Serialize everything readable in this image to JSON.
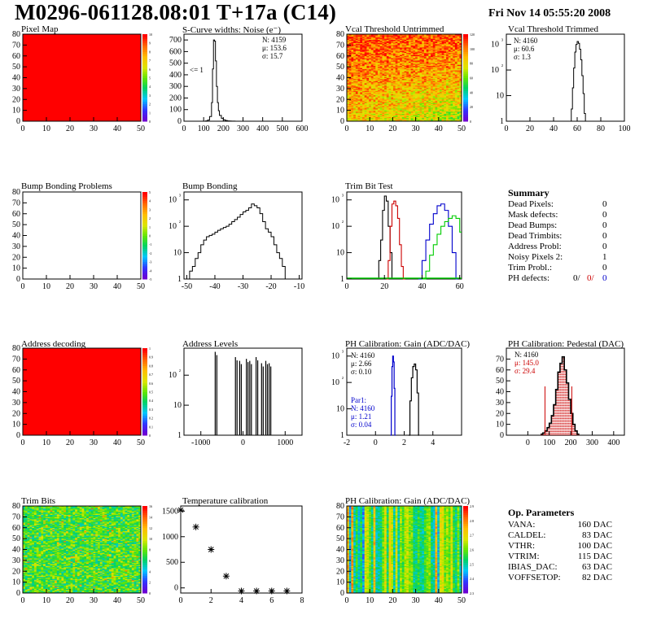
{
  "header": {
    "title": "M0296-061128.08:01 T+17a (C14)",
    "date": "Fri Nov 14 05:55:20 2008"
  },
  "panels": {
    "pixel_map": {
      "title": "Pixel Map",
      "xticks": [
        "0",
        "10",
        "20",
        "30",
        "40",
        "50"
      ],
      "yticks": [
        "0",
        "10",
        "20",
        "30",
        "40",
        "50",
        "60",
        "70",
        "80"
      ],
      "zticks": [
        "0",
        "1",
        "2",
        "3",
        "4",
        "5",
        "6",
        "7",
        "8",
        "9",
        "10"
      ]
    },
    "scurve": {
      "title": "S-Curve widths: Noise (e⁻)",
      "xticks": [
        "0",
        "100",
        "200",
        "300",
        "400",
        "500",
        "600"
      ],
      "yticks": [
        "0",
        "100",
        "200",
        "300",
        "400",
        "500",
        "600",
        "700"
      ],
      "stats": [
        "N: 4159",
        "μ: 153.6",
        "σ: 15.7"
      ],
      "annotation": "<= 1"
    },
    "vcal_untrimmed": {
      "title": "Vcal Threshold Untrimmed",
      "xticks": [
        "0",
        "10",
        "20",
        "30",
        "40",
        "50"
      ],
      "yticks": [
        "0",
        "10",
        "20",
        "30",
        "40",
        "50",
        "60",
        "70",
        "80"
      ],
      "zticks": [
        "0",
        "20",
        "40",
        "60",
        "80",
        "100",
        "120"
      ]
    },
    "vcal_trimmed": {
      "title": "Vcal Threshold Trimmed",
      "xticks": [
        "0",
        "20",
        "40",
        "60",
        "80",
        "100"
      ],
      "yticks": [
        "1",
        "10",
        "10²",
        "10³"
      ],
      "stats": [
        "N: 4160",
        "μ: 60.6",
        "σ:  1.3"
      ]
    },
    "bump_problems": {
      "title": "Bump Bonding Problems",
      "xticks": [
        "0",
        "10",
        "20",
        "30",
        "40",
        "50"
      ],
      "yticks": [
        "0",
        "10",
        "20",
        "30",
        "40",
        "50",
        "60",
        "70",
        "80"
      ],
      "zticks": [
        "-5",
        "-4",
        "-3",
        "-2",
        "-1",
        "0",
        "1",
        "2",
        "3",
        "4",
        "5"
      ]
    },
    "bump_bonding": {
      "title": "Bump Bonding",
      "xticks": [
        "-50",
        "-40",
        "-30",
        "-20",
        "-10"
      ],
      "yticks": [
        "1",
        "10",
        "10²",
        "10³"
      ]
    },
    "trim_bit": {
      "title": "Trim Bit Test",
      "xticks": [
        "0",
        "20",
        "40",
        "60"
      ],
      "yticks": [
        "1",
        "10",
        "10²",
        "10³"
      ]
    },
    "address_decoding": {
      "title": "Address decoding",
      "xticks": [
        "0",
        "10",
        "20",
        "30",
        "40",
        "50"
      ],
      "yticks": [
        "0",
        "10",
        "20",
        "30",
        "40",
        "50",
        "60",
        "70",
        "80"
      ],
      "zticks": [
        "0",
        "0.1",
        "0.2",
        "0.3",
        "0.4",
        "0.5",
        "0.6",
        "0.7",
        "0.8",
        "0.9",
        "1"
      ]
    },
    "address_levels": {
      "title": "Address Levels",
      "xticks": [
        "-1000",
        "0",
        "1000"
      ],
      "yticks": [
        "1",
        "10",
        "10²"
      ]
    },
    "ph_gain": {
      "title": "PH Calibration: Gain (ADC/DAC)",
      "xticks": [
        "-2",
        "0",
        "2",
        "4"
      ],
      "yticks": [
        "1",
        "10",
        "10²",
        "10³"
      ],
      "stats": [
        "N: 4160",
        "μ: 2.66",
        "σ: 0.10"
      ],
      "par1": [
        "Par1:",
        "N: 4160",
        "μ: 1.21",
        "σ: 0.04"
      ]
    },
    "ph_pedestal": {
      "title": "PH Calibration: Pedestal (DAC)",
      "xticks": [
        "0",
        "100",
        "200",
        "300",
        "400"
      ],
      "yticks": [
        "0",
        "10",
        "20",
        "30",
        "40",
        "50",
        "60",
        "70"
      ],
      "stats": [
        "N: 4160",
        "μ: 145.0",
        "σ: 29.4"
      ]
    },
    "trim_bits": {
      "title": "Trim Bits",
      "xticks": [
        "0",
        "10",
        "20",
        "30",
        "40",
        "50"
      ],
      "yticks": [
        "0",
        "10",
        "20",
        "30",
        "40",
        "50",
        "60",
        "70",
        "80"
      ],
      "zticks": [
        "0",
        "2",
        "4",
        "6",
        "8",
        "10",
        "12",
        "14",
        "16"
      ]
    },
    "temperature": {
      "title": "Temperature calibration",
      "xticks": [
        "0",
        "2",
        "4",
        "6",
        "8"
      ],
      "yticks": [
        "0",
        "500",
        "1000",
        "1500"
      ]
    },
    "ph_gain_map": {
      "title": "PH Calibration: Gain (ADC/DAC)",
      "xticks": [
        "0",
        "10",
        "20",
        "30",
        "40",
        "50"
      ],
      "yticks": [
        "0",
        "10",
        "20",
        "30",
        "40",
        "50",
        "60",
        "70",
        "80"
      ],
      "zticks": [
        "2.3",
        "2.4",
        "2.5",
        "2.6",
        "2.7",
        "2.8",
        "2.9"
      ]
    }
  },
  "summary": {
    "title": "Summary",
    "rows": [
      {
        "label": "Dead Pixels:",
        "value": "0"
      },
      {
        "label": "Mask defects:",
        "value": "0"
      },
      {
        "label": "Dead Bumps:",
        "value": "0"
      },
      {
        "label": "Dead Trimbits:",
        "value": "0"
      },
      {
        "label": "Address Probl:",
        "value": "0"
      },
      {
        "label": "Noisy Pixels 2:",
        "value": "1"
      },
      {
        "label": "Trim Probl.:",
        "value": "0"
      }
    ],
    "ph_defects": {
      "label": "PH defects:",
      "values": [
        "0/",
        "0/",
        "0"
      ],
      "colors": [
        "#000000",
        "#cc0000",
        "#0000cc"
      ]
    }
  },
  "op_params": {
    "title": "Op. Parameters",
    "rows": [
      {
        "label": "VANA:",
        "value": "160 DAC"
      },
      {
        "label": "CALDEL:",
        "value": "83 DAC"
      },
      {
        "label": "VTHR:",
        "value": "100 DAC"
      },
      {
        "label": "VTRIM:",
        "value": "115 DAC"
      },
      {
        "label": "IBIAS_DAC:",
        "value": "63 DAC"
      },
      {
        "label": "VOFFSETOP:",
        "value": "82 DAC"
      }
    ]
  },
  "chart_data": [
    {
      "type": "heatmap",
      "title": "Pixel Map",
      "x_range": [
        0,
        52
      ],
      "y_range": [
        0,
        80
      ],
      "uniform_value": 10,
      "z_range": [
        0,
        10
      ]
    },
    {
      "type": "bar",
      "title": "S-Curve widths: Noise (e⁻)",
      "x_range": [
        0,
        600
      ],
      "y_range": [
        0,
        750
      ],
      "x": [
        100,
        110,
        120,
        130,
        140,
        145,
        150,
        155,
        160,
        165,
        170,
        175,
        180,
        190,
        200,
        210,
        220,
        230,
        240,
        250,
        260
      ],
      "values": [
        0,
        3,
        10,
        40,
        160,
        450,
        700,
        690,
        520,
        300,
        160,
        90,
        50,
        25,
        12,
        6,
        3,
        2,
        1,
        1,
        0
      ],
      "stats": {
        "N": 4159,
        "mean": 153.6,
        "sigma": 15.7
      }
    },
    {
      "type": "heatmap",
      "title": "Vcal Threshold Untrimmed",
      "x_range": [
        0,
        52
      ],
      "y_range": [
        0,
        80
      ],
      "z_range": [
        0,
        130
      ],
      "typical_value": 100
    },
    {
      "type": "bar",
      "title": "Vcal Threshold Trimmed",
      "log_y": true,
      "x_range": [
        0,
        100
      ],
      "x": [
        54,
        55,
        56,
        57,
        58,
        59,
        60,
        61,
        62,
        63,
        64,
        65,
        66,
        67
      ],
      "values": [
        1,
        3,
        20,
        120,
        500,
        1000,
        1300,
        1100,
        650,
        250,
        60,
        12,
        2,
        1
      ],
      "stats": {
        "N": 4160,
        "mean": 60.6,
        "sigma": 1.3
      }
    },
    {
      "type": "heatmap",
      "title": "Bump Bonding Problems",
      "x_range": [
        0,
        52
      ],
      "y_range": [
        0,
        80
      ],
      "z_range": [
        -5,
        5
      ],
      "uniform_value": 0
    },
    {
      "type": "bar",
      "title": "Bump Bonding",
      "log_y": true,
      "x_range": [
        -50,
        -10
      ],
      "x": [
        -50,
        -49,
        -48,
        -47,
        -46,
        -45,
        -44,
        -43,
        -42,
        -41,
        -40,
        -39,
        -38,
        -37,
        -36,
        -35,
        -34,
        -33,
        -32,
        -31,
        -30,
        -29,
        -28,
        -27,
        -26,
        -25,
        -24,
        -23,
        -22,
        -21,
        -20,
        -19,
        -18,
        -17,
        -16,
        -15,
        -14
      ],
      "values": [
        1,
        2,
        3,
        6,
        10,
        20,
        30,
        40,
        45,
        50,
        60,
        70,
        80,
        90,
        100,
        120,
        150,
        180,
        220,
        280,
        350,
        400,
        500,
        700,
        600,
        500,
        300,
        150,
        80,
        60,
        40,
        20,
        10,
        6,
        3,
        1,
        0
      ]
    },
    {
      "type": "bar",
      "title": "Trim Bit Test",
      "log_y": true,
      "x_range": [
        0,
        60
      ],
      "series": [
        {
          "name": "",
          "color": "#000000",
          "x": [
            16,
            17,
            18,
            19,
            20,
            21,
            22,
            23,
            24
          ],
          "values": [
            1,
            5,
            30,
            400,
            1400,
            900,
            100,
            10,
            1
          ]
        },
        {
          "name": "",
          "color": "#cc0000",
          "x": [
            21,
            22,
            23,
            24,
            25,
            26,
            27,
            28,
            29,
            30
          ],
          "values": [
            1,
            5,
            100,
            700,
            900,
            600,
            200,
            20,
            3,
            1
          ]
        },
        {
          "name": "",
          "color": "#0000cc",
          "x": [
            38,
            40,
            42,
            44,
            46,
            48,
            50,
            52,
            54,
            56,
            58
          ],
          "values": [
            1,
            5,
            30,
            120,
            300,
            600,
            700,
            400,
            100,
            10,
            1
          ]
        },
        {
          "name": "",
          "color": "#00cc00",
          "x": [
            40,
            42,
            44,
            46,
            48,
            50,
            52,
            54,
            56,
            58,
            60
          ],
          "values": [
            1,
            2,
            8,
            20,
            50,
            100,
            150,
            200,
            250,
            200,
            60
          ]
        }
      ]
    },
    {
      "type": "heatmap",
      "title": "Address decoding",
      "x_range": [
        0,
        52
      ],
      "y_range": [
        0,
        80
      ],
      "uniform_value": 1,
      "z_range": [
        0,
        1
      ]
    },
    {
      "type": "bar",
      "title": "Address Levels",
      "log_y": true,
      "x_range": [
        -1400,
        1400
      ],
      "x": [
        -640,
        -160,
        -60,
        100,
        180,
        330,
        460,
        560,
        640
      ],
      "values": [
        600,
        400,
        300,
        350,
        300,
        400,
        250,
        300,
        250
      ]
    },
    {
      "type": "bar",
      "title": "PH Calibration: Gain (ADC/DAC)",
      "log_y": true,
      "x_range": [
        -2,
        6
      ],
      "series": [
        {
          "name": "",
          "color": "#000000",
          "x": [
            2.3,
            2.4,
            2.5,
            2.6,
            2.7,
            2.8,
            2.9,
            3.0
          ],
          "values": [
            1,
            20,
            150,
            400,
            500,
            300,
            40,
            1
          ]
        },
        {
          "name": "Par1",
          "color": "#0000cc",
          "x": [
            1.05,
            1.1,
            1.15,
            1.2,
            1.25,
            1.3,
            1.35
          ],
          "values": [
            1,
            30,
            400,
            1000,
            600,
            60,
            1
          ]
        }
      ],
      "stats": {
        "N": 4160,
        "mean": 2.66,
        "sigma": 0.1
      }
    },
    {
      "type": "bar",
      "title": "PH Calibration: Pedestal (DAC)",
      "x_range": [
        -100,
        450
      ],
      "y_range": [
        0,
        80
      ],
      "x": [
        60,
        70,
        80,
        90,
        100,
        110,
        120,
        130,
        140,
        150,
        160,
        170,
        180,
        190,
        200,
        210,
        220,
        230
      ],
      "values": [
        1,
        2,
        4,
        7,
        11,
        18,
        28,
        42,
        58,
        66,
        72,
        60,
        48,
        33,
        20,
        10,
        4,
        1
      ],
      "stats": {
        "N": 4160,
        "mean": 145.0,
        "sigma": 29.4
      }
    },
    {
      "type": "heatmap",
      "title": "Trim Bits",
      "x_range": [
        0,
        52
      ],
      "y_range": [
        0,
        80
      ],
      "z_range": [
        0,
        16
      ],
      "typical_value": 8
    },
    {
      "type": "scatter",
      "title": "Temperature calibration",
      "x_range": [
        0,
        8
      ],
      "y_range": [
        -100,
        1600
      ],
      "x": [
        0,
        1,
        2,
        3,
        4,
        5,
        6,
        7
      ],
      "y": [
        1520,
        1190,
        750,
        230,
        -60,
        -60,
        -60,
        -60
      ]
    },
    {
      "type": "heatmap",
      "title": "PH Calibration: Gain (ADC/DAC)",
      "x_range": [
        0,
        52
      ],
      "y_range": [
        0,
        80
      ],
      "z_range": [
        2.3,
        2.9
      ],
      "typical_value": 2.6
    }
  ]
}
